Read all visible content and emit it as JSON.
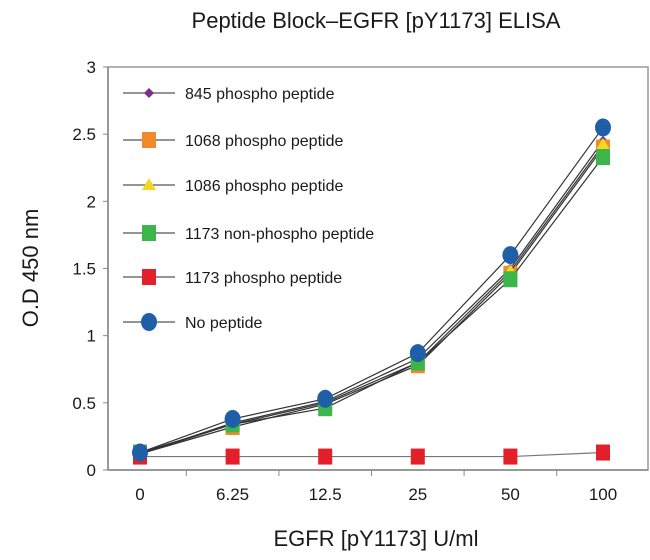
{
  "chart_data": {
    "type": "line",
    "title": "Peptide Block–EGFR [pY1173] ELISA",
    "xlabel": "EGFR [pY1173] U/ml",
    "ylabel": "O.D 450 nm",
    "categories": [
      "0",
      "6.25",
      "12.5",
      "25",
      "50",
      "100"
    ],
    "ylim": [
      0,
      3
    ],
    "yticks": [
      "0",
      "0.5",
      "1",
      "1.5",
      "2",
      "2.5",
      "3"
    ],
    "grid": false,
    "legend_position": "top-left",
    "series": [
      {
        "name": "845 phospho peptide",
        "marker": "diamond",
        "color": "#7b2f8f",
        "values": [
          0.12,
          0.35,
          0.51,
          0.83,
          1.5,
          2.45
        ]
      },
      {
        "name": "1068 phospho peptide",
        "marker": "square",
        "color": "#f08a2c",
        "values": [
          0.12,
          0.32,
          0.49,
          0.78,
          1.46,
          2.4
        ]
      },
      {
        "name": "1086 phospho peptide",
        "marker": "triangle",
        "color": "#f2d820",
        "values": [
          0.12,
          0.34,
          0.5,
          0.8,
          1.48,
          2.42
        ]
      },
      {
        "name": "1173 non-phospho peptide",
        "marker": "square",
        "color": "#3cb54a",
        "values": [
          0.13,
          0.34,
          0.46,
          0.8,
          1.42,
          2.33
        ]
      },
      {
        "name": "1173 phospho peptide",
        "marker": "square",
        "color": "#e3202a",
        "values": [
          0.1,
          0.1,
          0.1,
          0.1,
          0.1,
          0.13
        ]
      },
      {
        "name": "No peptide",
        "marker": "circle",
        "color": "#1f5fa8",
        "values": [
          0.13,
          0.38,
          0.53,
          0.87,
          1.6,
          2.55
        ]
      }
    ]
  }
}
